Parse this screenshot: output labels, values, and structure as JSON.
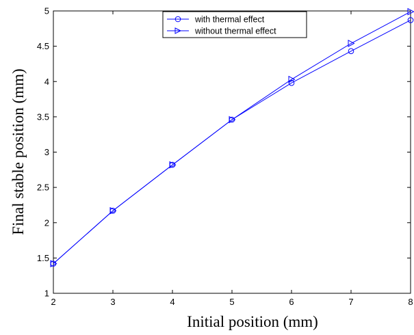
{
  "chart_data": {
    "type": "line",
    "title": "",
    "xlabel": "Initial position (mm)",
    "ylabel": "Final stable position (mm)",
    "xlim": [
      2,
      8
    ],
    "ylim": [
      1,
      5
    ],
    "xticks": [
      "2",
      "3",
      "4",
      "5",
      "6",
      "7",
      "8"
    ],
    "yticks": [
      "1",
      "1.5",
      "2",
      "2.5",
      "3",
      "3.5",
      "4",
      "4.5",
      "5"
    ],
    "grid": false,
    "legend_position": "top-center",
    "x": [
      2,
      3,
      4,
      5,
      6,
      7,
      8
    ],
    "series": [
      {
        "name": "with thermal effect",
        "marker": "circle",
        "color": "#0000ff",
        "values": [
          1.42,
          2.17,
          2.82,
          3.46,
          3.98,
          4.43,
          4.87
        ]
      },
      {
        "name": "without thermal effect",
        "marker": "triangle-right",
        "color": "#0000ff",
        "values": [
          1.42,
          2.17,
          2.82,
          3.46,
          4.03,
          4.54,
          4.99
        ]
      }
    ]
  }
}
